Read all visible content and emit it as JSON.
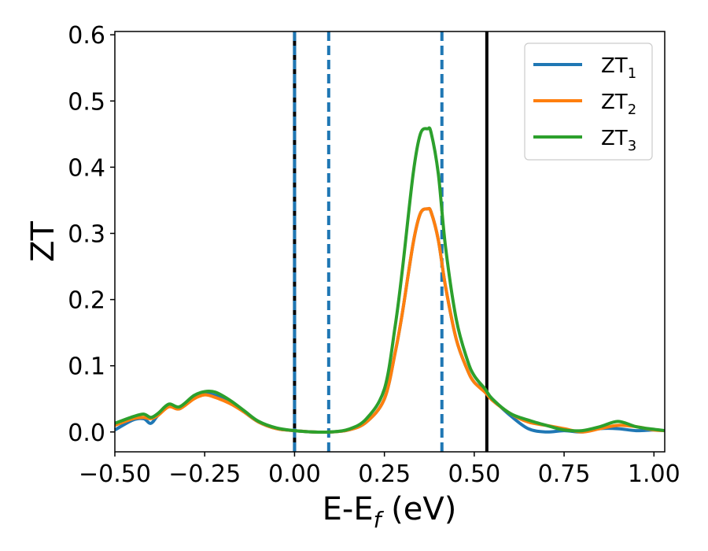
{
  "chart_data": {
    "type": "line",
    "xlabel": "E-E",
    "xlabel_sub": "f",
    "xlabel_unit": " (eV)",
    "ylabel": "ZT",
    "xlim": [
      -0.5,
      1.03
    ],
    "ylim": [
      -0.03,
      0.605
    ],
    "xticks": [
      -0.5,
      -0.25,
      0.0,
      0.25,
      0.5,
      0.75,
      1.0
    ],
    "xtick_labels": [
      "−0.50",
      "−0.25",
      "0.00",
      "0.25",
      "0.50",
      "0.75",
      "1.00"
    ],
    "yticks": [
      0.0,
      0.1,
      0.2,
      0.3,
      0.4,
      0.5,
      0.6
    ],
    "ytick_labels": [
      "0.0",
      "0.1",
      "0.2",
      "0.3",
      "0.4",
      "0.5",
      "0.6"
    ],
    "grid": false,
    "legend_position": "top-right",
    "series": [
      {
        "name": "ZT",
        "name_sub": "1",
        "color": "#1f77b4",
        "x": [
          -0.5,
          -0.45,
          -0.42,
          -0.4,
          -0.38,
          -0.35,
          -0.32,
          -0.28,
          -0.25,
          -0.22,
          -0.18,
          -0.14,
          -0.1,
          -0.05,
          0.0,
          0.05,
          0.1,
          0.15,
          0.2,
          0.25,
          0.28,
          0.3,
          0.33,
          0.35,
          0.37,
          0.38,
          0.4,
          0.42,
          0.45,
          0.48,
          0.5,
          0.53,
          0.55,
          0.6,
          0.65,
          0.7,
          0.75,
          0.8,
          0.85,
          0.9,
          0.95,
          1.0,
          1.03
        ],
        "y": [
          0.003,
          0.018,
          0.02,
          0.013,
          0.025,
          0.04,
          0.035,
          0.052,
          0.058,
          0.055,
          0.045,
          0.03,
          0.015,
          0.005,
          0.002,
          0.0,
          0.0,
          0.003,
          0.015,
          0.05,
          0.12,
          0.18,
          0.285,
          0.33,
          0.337,
          0.332,
          0.29,
          0.22,
          0.14,
          0.095,
          0.075,
          0.062,
          0.05,
          0.025,
          0.005,
          0.0,
          0.002,
          0.0,
          0.005,
          0.005,
          0.002,
          0.003,
          0.002
        ]
      },
      {
        "name": "ZT",
        "name_sub": "2",
        "color": "#ff7f0e",
        "x": [
          -0.5,
          -0.45,
          -0.42,
          -0.4,
          -0.38,
          -0.35,
          -0.32,
          -0.28,
          -0.25,
          -0.22,
          -0.18,
          -0.14,
          -0.1,
          -0.05,
          0.0,
          0.05,
          0.1,
          0.15,
          0.2,
          0.25,
          0.28,
          0.3,
          0.33,
          0.35,
          0.37,
          0.38,
          0.4,
          0.42,
          0.45,
          0.48,
          0.5,
          0.53,
          0.55,
          0.6,
          0.65,
          0.7,
          0.75,
          0.8,
          0.85,
          0.9,
          0.95,
          1.0,
          1.03
        ],
        "y": [
          0.01,
          0.02,
          0.022,
          0.02,
          0.025,
          0.038,
          0.035,
          0.05,
          0.056,
          0.052,
          0.043,
          0.03,
          0.015,
          0.005,
          0.002,
          0.0,
          0.0,
          0.003,
          0.015,
          0.05,
          0.12,
          0.18,
          0.285,
          0.33,
          0.337,
          0.332,
          0.29,
          0.22,
          0.14,
          0.095,
          0.075,
          0.06,
          0.048,
          0.028,
          0.015,
          0.01,
          0.005,
          0.0,
          0.005,
          0.01,
          0.008,
          0.003,
          0.002
        ]
      },
      {
        "name": "ZT",
        "name_sub": "3",
        "color": "#2ca02c",
        "x": [
          -0.5,
          -0.45,
          -0.42,
          -0.4,
          -0.38,
          -0.35,
          -0.32,
          -0.28,
          -0.25,
          -0.22,
          -0.18,
          -0.14,
          -0.1,
          -0.05,
          0.0,
          0.05,
          0.1,
          0.15,
          0.2,
          0.25,
          0.28,
          0.3,
          0.33,
          0.35,
          0.37,
          0.38,
          0.4,
          0.42,
          0.45,
          0.48,
          0.5,
          0.53,
          0.55,
          0.6,
          0.65,
          0.7,
          0.75,
          0.8,
          0.85,
          0.9,
          0.95,
          1.0,
          1.03
        ],
        "y": [
          0.013,
          0.023,
          0.027,
          0.022,
          0.028,
          0.042,
          0.038,
          0.055,
          0.061,
          0.06,
          0.048,
          0.032,
          0.016,
          0.006,
          0.002,
          0.0,
          0.0,
          0.004,
          0.02,
          0.065,
          0.16,
          0.245,
          0.39,
          0.45,
          0.458,
          0.452,
          0.39,
          0.28,
          0.17,
          0.11,
          0.085,
          0.065,
          0.05,
          0.028,
          0.018,
          0.01,
          0.003,
          0.002,
          0.008,
          0.016,
          0.008,
          0.004,
          0.002
        ]
      }
    ],
    "vertical_lines": [
      {
        "x": 0.0,
        "style": "solid",
        "color": "#000000"
      },
      {
        "x": 0.0,
        "style": "dashed",
        "color": "#1f77b4"
      },
      {
        "x": 0.095,
        "style": "dashed",
        "color": "#1f77b4"
      },
      {
        "x": 0.41,
        "style": "dashed",
        "color": "#1f77b4"
      },
      {
        "x": 0.535,
        "style": "solid",
        "color": "#000000"
      }
    ]
  }
}
